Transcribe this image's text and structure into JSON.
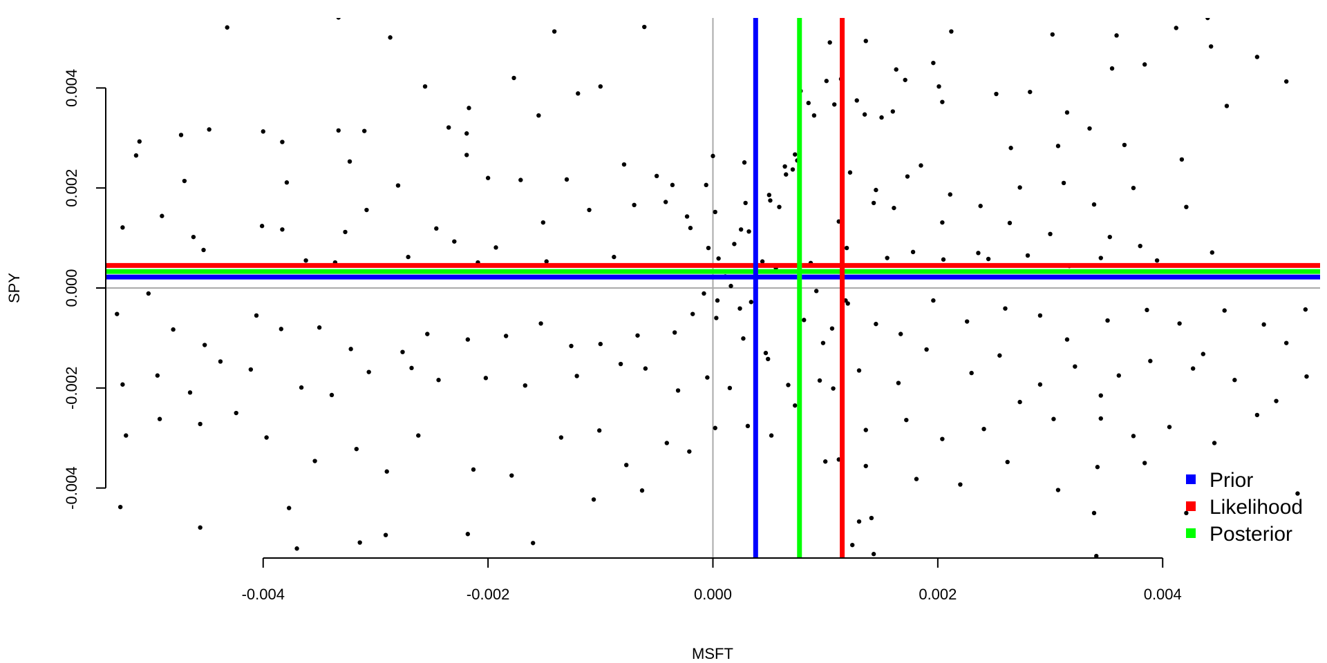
{
  "chart_data": {
    "type": "scatter",
    "xlabel": "MSFT",
    "ylabel": "SPY",
    "xlim": [
      -0.0054,
      0.0054
    ],
    "ylim": [
      -0.0054,
      0.0054
    ],
    "x_ticks": [
      "-0.004",
      "-0.002",
      "0.000",
      "0.002",
      "0.004"
    ],
    "x_tick_values": [
      -0.004,
      -0.002,
      0.0,
      0.002,
      0.004
    ],
    "y_ticks": [
      "-0.004",
      "-0.002",
      "0.000",
      "0.002",
      "0.004"
    ],
    "y_tick_values": [
      -0.004,
      -0.002,
      0.0,
      0.002,
      0.004
    ],
    "point_color": "#000000",
    "zero_line_color": "#aaaaaa",
    "lines": [
      {
        "name": "Prior",
        "color": "#0000ff",
        "x": 0.00038,
        "y": 0.00022
      },
      {
        "name": "Likelihood",
        "color": "#ff0000",
        "x": 0.00115,
        "y": 0.00045
      },
      {
        "name": "Posterior",
        "color": "#00ff00",
        "x": 0.00077,
        "y": 0.00033
      }
    ],
    "legend": {
      "position": "bottom-right",
      "entries": [
        "Prior",
        "Likelihood",
        "Posterior"
      ]
    },
    "points": [
      [
        -0.00432,
        0.00521
      ],
      [
        -0.00333,
        0.00541
      ],
      [
        -0.00287,
        0.00501
      ],
      [
        -0.00141,
        0.00513
      ],
      [
        -0.00061,
        0.00522
      ],
      [
        -0.00256,
        0.00403
      ],
      [
        -0.00217,
        0.0036
      ],
      [
        -0.00177,
        0.0042
      ],
      [
        -0.0012,
        0.00389
      ],
      [
        -0.001,
        0.00403
      ],
      [
        -0.0051,
        0.00293
      ],
      [
        -0.00473,
        0.00306
      ],
      [
        -0.00448,
        0.00317
      ],
      [
        -0.004,
        0.00313
      ],
      [
        -0.00383,
        0.00292
      ],
      [
        -0.00333,
        0.00315
      ],
      [
        -0.0031,
        0.00314
      ],
      [
        -0.00235,
        0.00321
      ],
      [
        -0.00219,
        0.00266
      ],
      [
        -0.00155,
        0.00345
      ],
      [
        -0.00513,
        0.00265
      ],
      [
        -0.0047,
        0.00214
      ],
      [
        -0.00379,
        0.00211
      ],
      [
        -0.00323,
        0.00253
      ],
      [
        -0.0028,
        0.00205
      ],
      [
        -0.00219,
        0.00309
      ],
      [
        -0.002,
        0.0022
      ],
      [
        -0.00171,
        0.00216
      ],
      [
        -0.0013,
        0.00217
      ],
      [
        -0.00079,
        0.00247
      ],
      [
        -0.0005,
        0.00224
      ],
      [
        -0.00036,
        0.00206
      ],
      [
        0.00028,
        0.00251
      ],
      [
        0.00064,
        0.00243
      ],
      [
        0.00073,
        0.00267
      ],
      [
        -0.00462,
        0.00102
      ],
      [
        -0.00383,
        0.00117
      ],
      [
        -0.00362,
        0.00055
      ],
      [
        -0.00327,
        0.00112
      ],
      [
        -0.00308,
        0.00156
      ],
      [
        -0.00246,
        0.00119
      ],
      [
        -0.00193,
        0.00081
      ],
      [
        -0.00151,
        0.00131
      ],
      [
        -0.0011,
        0.00156
      ],
      [
        -0.0007,
        0.00166
      ],
      [
        -0.00042,
        0.00172
      ],
      [
        -0.00023,
        0.00143
      ],
      [
        2e-05,
        0.00152
      ],
      [
        0.00025,
        0.00117
      ],
      [
        0.00051,
        0.00175
      ],
      [
        -0.00525,
        0.00121
      ],
      [
        -0.0049,
        0.00144
      ],
      [
        -0.00453,
        0.00076
      ],
      [
        -0.00401,
        0.00124
      ],
      [
        -0.00336,
        0.00051
      ],
      [
        -0.00271,
        0.00062
      ],
      [
        -0.0023,
        0.00093
      ],
      [
        -0.00209,
        0.00051
      ],
      [
        -0.00148,
        0.00053
      ],
      [
        -0.00088,
        0.00062
      ],
      [
        -0.0053,
        -0.00052
      ],
      [
        -0.00502,
        -0.00011
      ],
      [
        -0.0048,
        -0.00083
      ],
      [
        -0.00452,
        -0.00114
      ],
      [
        -0.00406,
        -0.00055
      ],
      [
        -0.00384,
        -0.00082
      ],
      [
        -0.0035,
        -0.00079
      ],
      [
        -0.00322,
        -0.00122
      ],
      [
        -0.00276,
        -0.00128
      ],
      [
        -0.00254,
        -0.00092
      ],
      [
        -0.00218,
        -0.00103
      ],
      [
        -0.00184,
        -0.00096
      ],
      [
        -0.00153,
        -0.00071
      ],
      [
        -0.00126,
        -0.00116
      ],
      [
        -0.001,
        -0.00112
      ],
      [
        -0.00067,
        -0.00095
      ],
      [
        -0.00034,
        -0.00089
      ],
      [
        -0.00018,
        -0.00052
      ],
      [
        3e-05,
        -0.0006
      ],
      [
        0.00024,
        -0.00041
      ],
      [
        -0.00525,
        -0.00193
      ],
      [
        -0.00494,
        -0.00175
      ],
      [
        -0.00465,
        -0.00209
      ],
      [
        -0.00438,
        -0.00147
      ],
      [
        -0.00411,
        -0.00163
      ],
      [
        -0.00366,
        -0.00199
      ],
      [
        -0.00339,
        -0.00214
      ],
      [
        -0.00306,
        -0.00168
      ],
      [
        -0.00268,
        -0.0016
      ],
      [
        -0.00244,
        -0.00184
      ],
      [
        -0.00202,
        -0.0018
      ],
      [
        -0.00167,
        -0.00195
      ],
      [
        -0.00121,
        -0.00176
      ],
      [
        -0.00082,
        -0.00152
      ],
      [
        -0.0006,
        -0.00161
      ],
      [
        -0.00031,
        -0.00205
      ],
      [
        -5e-05,
        -0.00179
      ],
      [
        0.00015,
        -0.002
      ],
      [
        0.00049,
        -0.00142
      ],
      [
        0.00067,
        -0.00194
      ],
      [
        -0.00522,
        -0.00295
      ],
      [
        -0.00492,
        -0.00262
      ],
      [
        -0.00456,
        -0.00272
      ],
      [
        -0.00424,
        -0.0025
      ],
      [
        -0.00397,
        -0.00299
      ],
      [
        -0.00354,
        -0.00346
      ],
      [
        -0.00317,
        -0.00322
      ],
      [
        -0.0029,
        -0.00367
      ],
      [
        -0.00262,
        -0.00295
      ],
      [
        -0.00213,
        -0.00363
      ],
      [
        -0.00179,
        -0.00375
      ],
      [
        -0.00135,
        -0.00299
      ],
      [
        -0.00101,
        -0.00285
      ],
      [
        -0.00077,
        -0.00354
      ],
      [
        -0.00041,
        -0.0031
      ],
      [
        -0.00021,
        -0.00327
      ],
      [
        2e-05,
        -0.0028
      ],
      [
        0.00031,
        -0.00276
      ],
      [
        0.00052,
        -0.00295
      ],
      [
        0.00073,
        -0.00235
      ],
      [
        -0.00527,
        -0.00438
      ],
      [
        -0.00456,
        -0.00479
      ],
      [
        -0.00377,
        -0.0044
      ],
      [
        -0.0037,
        -0.00521
      ],
      [
        -0.00314,
        -0.00509
      ],
      [
        -0.00291,
        -0.00494
      ],
      [
        -0.00218,
        -0.00492
      ],
      [
        -0.0016,
        -0.0051
      ],
      [
        -0.00106,
        -0.00423
      ],
      [
        -0.00063,
        -0.00405
      ],
      [
        0.00104,
        0.00491
      ],
      [
        0.00136,
        0.00494
      ],
      [
        0.00196,
        0.0045
      ],
      [
        0.00212,
        0.00513
      ],
      [
        0.00302,
        0.00507
      ],
      [
        0.00359,
        0.00505
      ],
      [
        0.00412,
        0.0052
      ],
      [
        0.0044,
        0.0054
      ],
      [
        0.00443,
        0.00483
      ],
      [
        0.0051,
        0.00413
      ],
      [
        0.00128,
        0.00375
      ],
      [
        0.00163,
        0.00437
      ],
      [
        0.00171,
        0.00416
      ],
      [
        0.00201,
        0.00403
      ],
      [
        0.00252,
        0.00388
      ],
      [
        0.00282,
        0.00392
      ],
      [
        0.00315,
        0.00351
      ],
      [
        0.00355,
        0.00439
      ],
      [
        0.00384,
        0.00447
      ],
      [
        0.00484,
        0.00462
      ],
      [
        0.00135,
        0.00347
      ],
      [
        0.0015,
        0.00341
      ],
      [
        0.0016,
        0.00353
      ],
      [
        0.00204,
        0.00372
      ],
      [
        0.00265,
        0.0028
      ],
      [
        0.00307,
        0.00284
      ],
      [
        0.00335,
        0.00319
      ],
      [
        0.00366,
        0.00286
      ],
      [
        0.00417,
        0.00257
      ],
      [
        0.00457,
        0.00364
      ],
      [
        0.00122,
        0.00231
      ],
      [
        0.00145,
        0.00196
      ],
      [
        0.00173,
        0.00223
      ],
      [
        0.00185,
        0.00245
      ],
      [
        0.00211,
        0.00187
      ],
      [
        0.00238,
        0.00164
      ],
      [
        0.00273,
        0.00201
      ],
      [
        0.00312,
        0.0021
      ],
      [
        0.00339,
        0.00167
      ],
      [
        0.00374,
        0.002
      ],
      [
        0.00112,
        0.00133
      ],
      [
        0.00143,
        0.0017
      ],
      [
        0.00161,
        0.0016
      ],
      [
        0.00204,
        0.00131
      ],
      [
        0.00236,
        0.0007
      ],
      [
        0.00264,
        0.0013
      ],
      [
        0.003,
        0.00108
      ],
      [
        0.00353,
        0.00102
      ],
      [
        0.0038,
        0.00084
      ],
      [
        0.00421,
        0.00162
      ],
      [
        0.00119,
        0.0008
      ],
      [
        0.00155,
        0.0006
      ],
      [
        0.00178,
        0.00072
      ],
      [
        0.00205,
        0.00057
      ],
      [
        0.00245,
        0.00058
      ],
      [
        0.0028,
        0.00065
      ],
      [
        0.00317,
        0.00044
      ],
      [
        0.00345,
        0.0006
      ],
      [
        0.00395,
        0.00055
      ],
      [
        0.00444,
        0.00071
      ],
      [
        0.0012,
        -0.00031
      ],
      [
        0.00145,
        -0.00072
      ],
      [
        0.00167,
        -0.00092
      ],
      [
        0.00196,
        -0.00025
      ],
      [
        0.00226,
        -0.00067
      ],
      [
        0.0026,
        -0.00041
      ],
      [
        0.00291,
        -0.00055
      ],
      [
        0.00315,
        -0.00103
      ],
      [
        0.00351,
        -0.00065
      ],
      [
        0.00386,
        -0.00044
      ],
      [
        0.00415,
        -0.00071
      ],
      [
        0.00455,
        -0.00045
      ],
      [
        0.0049,
        -0.00073
      ],
      [
        0.00527,
        -0.00043
      ],
      [
        0.0051,
        -0.0011
      ],
      [
        0.0013,
        -0.00165
      ],
      [
        0.00165,
        -0.0019
      ],
      [
        0.0019,
        -0.00123
      ],
      [
        0.0023,
        -0.0017
      ],
      [
        0.00255,
        -0.00135
      ],
      [
        0.00291,
        -0.00193
      ],
      [
        0.00322,
        -0.00157
      ],
      [
        0.00361,
        -0.00175
      ],
      [
        0.00389,
        -0.00146
      ],
      [
        0.00427,
        -0.00161
      ],
      [
        0.00464,
        -0.00184
      ],
      [
        0.00501,
        -0.00226
      ],
      [
        0.00528,
        -0.00177
      ],
      [
        0.00436,
        -0.00132
      ],
      [
        0.00345,
        -0.00215
      ],
      [
        0.00136,
        -0.00284
      ],
      [
        0.00172,
        -0.00264
      ],
      [
        0.00204,
        -0.00302
      ],
      [
        0.00241,
        -0.00282
      ],
      [
        0.00273,
        -0.00228
      ],
      [
        0.00303,
        -0.00262
      ],
      [
        0.00345,
        -0.00261
      ],
      [
        0.00374,
        -0.00296
      ],
      [
        0.00406,
        -0.00278
      ],
      [
        0.00484,
        -0.00254
      ],
      [
        0.00136,
        -0.00356
      ],
      [
        0.00181,
        -0.00382
      ],
      [
        0.0022,
        -0.00393
      ],
      [
        0.00262,
        -0.00348
      ],
      [
        0.00307,
        -0.00404
      ],
      [
        0.00342,
        -0.00358
      ],
      [
        0.00384,
        -0.0035
      ],
      [
        0.00421,
        -0.0045
      ],
      [
        0.00446,
        -0.0031
      ],
      [
        0.0052,
        -0.00411
      ],
      [
        0.0013,
        -0.00467
      ],
      [
        0.00141,
        -0.0046
      ],
      [
        0.00339,
        -0.0045
      ],
      [
        0.00341,
        -0.00536
      ],
      [
        0.00143,
        -0.00532
      ],
      [
        -0.0002,
        0.0012
      ],
      [
        -6e-05,
        0.00206
      ],
      [
        0.0,
        0.00264
      ],
      [
        0.00029,
        0.0017
      ],
      [
        0.0005,
        0.00186
      ],
      [
        0.00065,
        0.00227
      ],
      [
        0.00071,
        0.00237
      ],
      [
        0.00075,
        0.00255
      ],
      [
        0.00078,
        0.00394
      ],
      [
        0.00085,
        0.0037
      ],
      [
        0.0009,
        0.00345
      ],
      [
        0.00101,
        0.00414
      ],
      [
        0.00108,
        0.00367
      ],
      [
        0.00114,
        0.00418
      ],
      [
        0.00059,
        0.00162
      ],
      [
        -4e-05,
        0.0008
      ],
      [
        5e-05,
        0.00059
      ],
      [
        0.00011,
        0.00023
      ],
      [
        0.00019,
        0.00088
      ],
      [
        0.00032,
        0.00113
      ],
      [
        0.00044,
        0.00053
      ],
      [
        0.00056,
        0.0004
      ],
      [
        0.00087,
        0.0005
      ],
      [
        0.00092,
        -6e-05
      ],
      [
        0.00108,
        0.00022
      ],
      [
        -8e-05,
        -0.00011
      ],
      [
        4e-05,
        -0.00025
      ],
      [
        0.00016,
        4e-05
      ],
      [
        0.00034,
        -0.00028
      ],
      [
        0.00081,
        -0.00064
      ],
      [
        0.00098,
        -0.0011
      ],
      [
        0.00106,
        -0.00081
      ],
      [
        0.00118,
        -0.00025
      ],
      [
        0.00047,
        -0.0013
      ],
      [
        0.00027,
        -0.00101
      ],
      [
        0.00095,
        -0.00185
      ],
      [
        0.00107,
        -0.00201
      ],
      [
        0.001,
        -0.00347
      ],
      [
        0.00112,
        -0.00343
      ],
      [
        0.00124,
        -0.00514
      ]
    ]
  }
}
